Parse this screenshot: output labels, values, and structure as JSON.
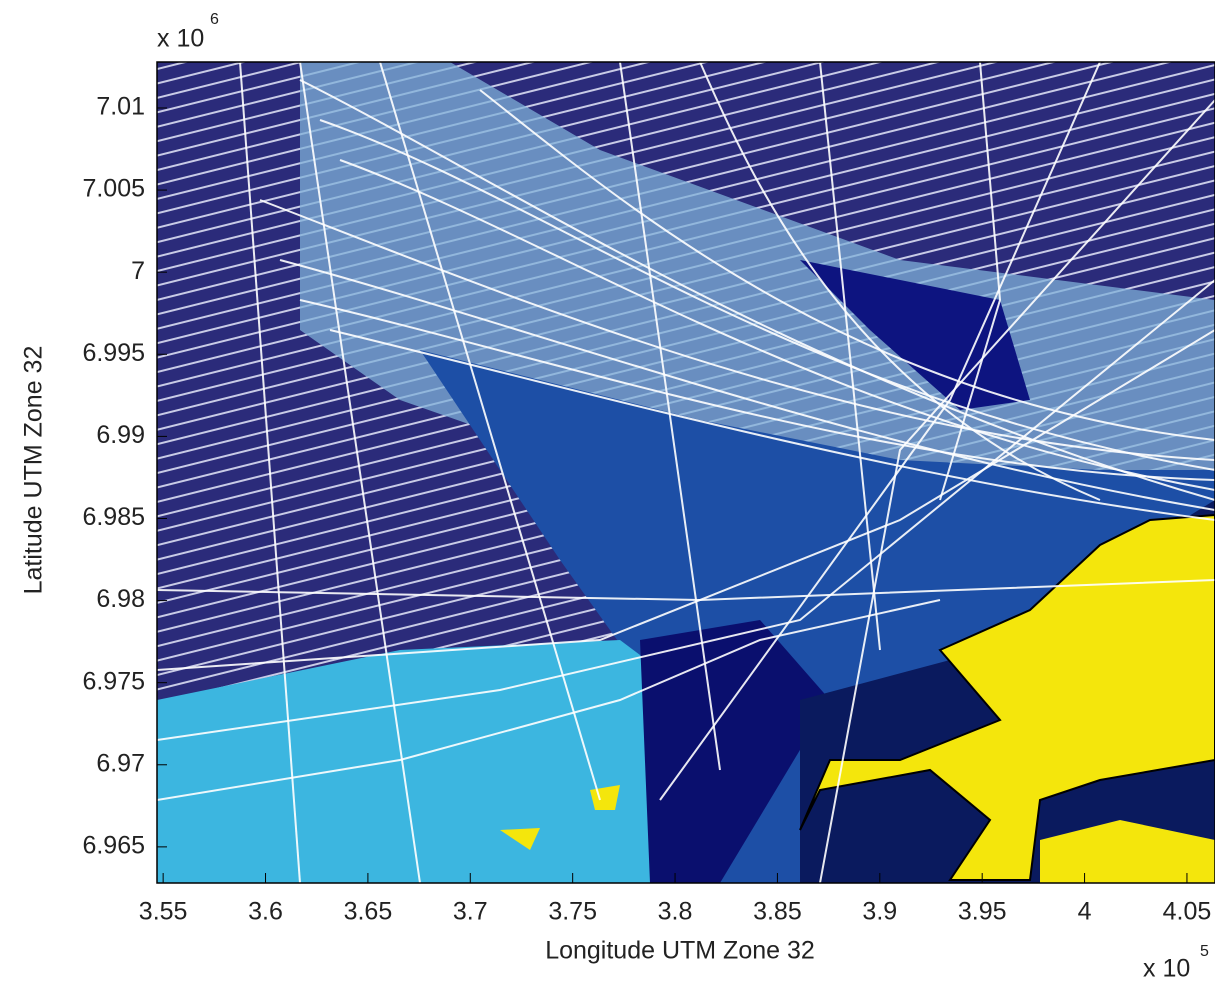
{
  "chart_data": {
    "type": "map",
    "xlabel": "Longitude UTM Zone 32",
    "ylabel": "Latitude UTM Zone 32",
    "x_multiplier": "x 10",
    "x_exponent": "5",
    "y_multiplier": "x 10",
    "y_exponent": "6",
    "xlim": [
      3.547,
      4.0637
    ],
    "ylim": [
      6.9628,
      7.0128
    ],
    "xticks": [
      3.55,
      3.6,
      3.65,
      3.7,
      3.75,
      3.8,
      3.85,
      3.9,
      3.95,
      4,
      4.05
    ],
    "yticks": [
      6.965,
      6.97,
      6.975,
      6.98,
      6.985,
      6.99,
      6.995,
      7,
      7.005,
      7.01
    ]
  }
}
